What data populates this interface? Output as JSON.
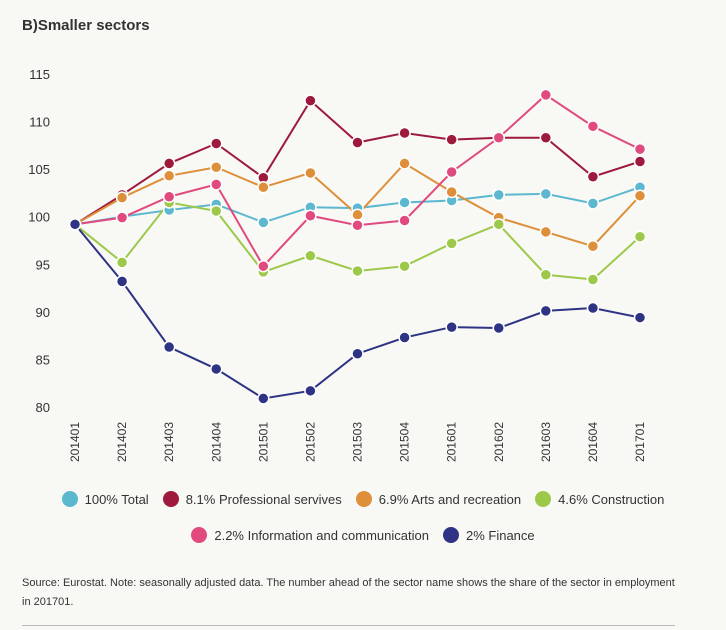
{
  "chart_data": {
    "type": "line",
    "title": "B)Smaller sectors",
    "xlabel": "",
    "ylabel": "",
    "ylim": [
      80,
      115
    ],
    "yticks": [
      80,
      85,
      90,
      95,
      100,
      105,
      110,
      115
    ],
    "categories": [
      "201401",
      "201402",
      "201403",
      "201404",
      "201501",
      "201502",
      "201503",
      "201504",
      "201601",
      "201602",
      "201603",
      "201604",
      "201701"
    ],
    "grid": false,
    "legend_placement": "bottom",
    "series": [
      {
        "name": "100% Total",
        "color": "#5bb8cf",
        "values": [
          99.2,
          100.0,
          100.7,
          101.3,
          99.4,
          101.0,
          100.9,
          101.5,
          101.7,
          102.3,
          102.4,
          101.4,
          103.1
        ]
      },
      {
        "name": "8.1% Professional servives",
        "color": "#9e1a3c",
        "values": [
          99.2,
          102.3,
          105.6,
          107.7,
          104.1,
          112.2,
          107.8,
          108.8,
          108.1,
          108.3,
          108.3,
          104.2,
          105.8
        ]
      },
      {
        "name": "6.9% Arts and recreation",
        "color": "#dd8f3a",
        "values": [
          99.2,
          102.0,
          104.3,
          105.2,
          103.1,
          104.6,
          100.2,
          105.6,
          102.6,
          99.9,
          98.4,
          96.9,
          102.2
        ]
      },
      {
        "name": "4.6% Construction",
        "color": "#9cc94a",
        "values": [
          99.2,
          95.2,
          101.5,
          100.6,
          94.2,
          95.9,
          94.3,
          94.8,
          97.2,
          99.2,
          93.9,
          93.4,
          97.9
        ]
      },
      {
        "name": "2.2% Information and communication",
        "color": "#e04a7f",
        "values": [
          99.2,
          99.9,
          102.1,
          103.4,
          94.8,
          100.1,
          99.1,
          99.6,
          104.7,
          108.3,
          112.8,
          109.5,
          107.1
        ]
      },
      {
        "name": "2% Finance",
        "color": "#2e3384",
        "values": [
          99.2,
          93.2,
          86.3,
          84.0,
          80.9,
          81.7,
          85.6,
          87.3,
          88.4,
          88.3,
          90.1,
          90.4,
          89.4
        ]
      }
    ]
  },
  "source": "Source: Eurostat. Note: seasonally adjusted data. The number ahead of the sector name shows the share of the sector in employment in 201701."
}
